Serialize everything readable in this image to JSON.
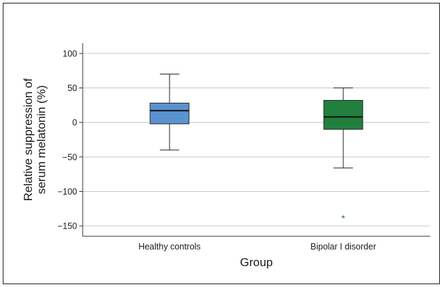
{
  "chart_data": {
    "type": "box",
    "xlabel": "Group",
    "ylabel_lines": [
      "Relative suppression of",
      "serum melatonin (%)"
    ],
    "ylim": [
      -165,
      115
    ],
    "yticks": [
      100,
      50,
      0,
      -50,
      -100,
      -150
    ],
    "ytick_labels": [
      "100",
      "50",
      "0",
      "−50",
      "−100",
      "−150"
    ],
    "grid": "horizontal",
    "categories": [
      "Healthy controls",
      "Bipolar I disorder"
    ],
    "series": [
      {
        "whisker_low": -40,
        "q1": -2,
        "median": 17,
        "q3": 28,
        "whisker_high": 70,
        "outliers": [],
        "color": "#5b93d1"
      },
      {
        "whisker_low": -66,
        "q1": -10,
        "median": 8,
        "q3": 32,
        "whisker_high": 50,
        "outliers": [
          -138
        ],
        "color": "#22803f"
      }
    ]
  }
}
